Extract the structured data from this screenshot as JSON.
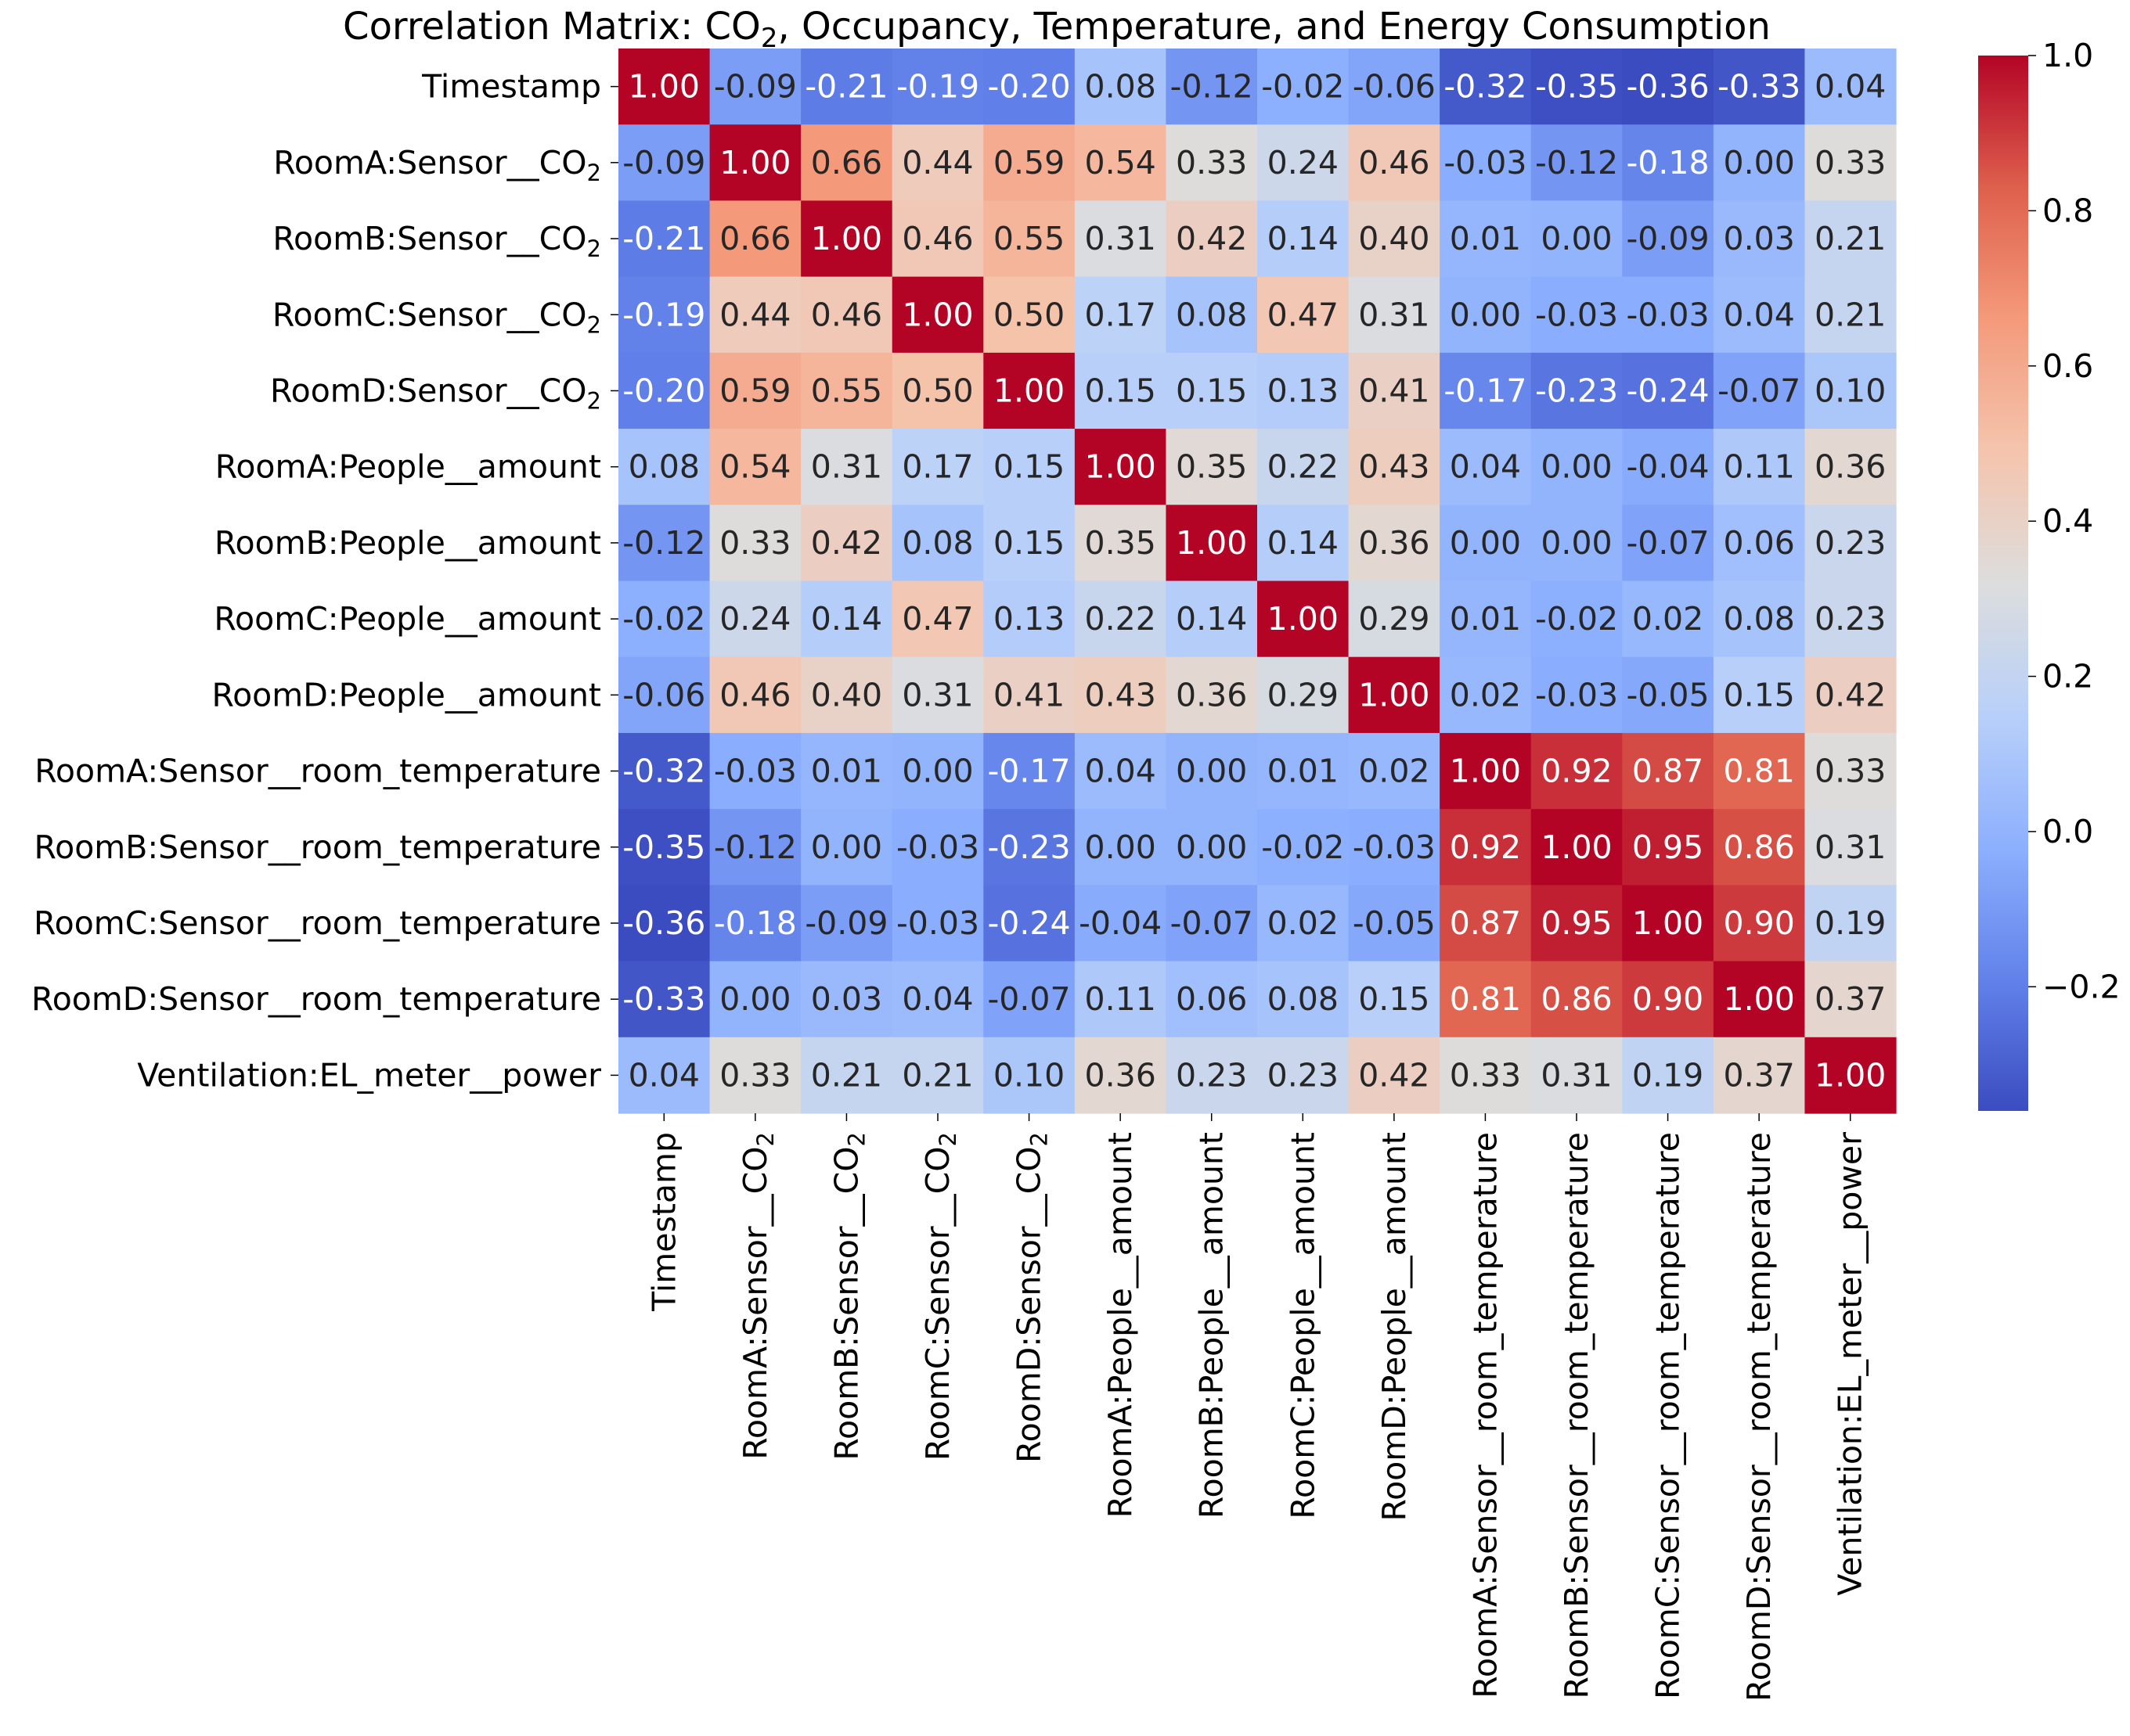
{
  "chart_data": {
    "type": "heatmap",
    "title_parts": [
      "Correlation Matrix: CO",
      "2",
      ", Occupancy, Temperature, and Energy Consumption"
    ],
    "colormap": "coolwarm",
    "vmin": -0.36,
    "vmax": 1.0,
    "labels": [
      {
        "text": "Timestamp"
      },
      {
        "text": "RoomA:Sensor__CO",
        "sub": "2"
      },
      {
        "text": "RoomB:Sensor__CO",
        "sub": "2"
      },
      {
        "text": "RoomC:Sensor__CO",
        "sub": "2"
      },
      {
        "text": "RoomD:Sensor__CO",
        "sub": "2"
      },
      {
        "text": "RoomA:People__amount"
      },
      {
        "text": "RoomB:People__amount"
      },
      {
        "text": "RoomC:People__amount"
      },
      {
        "text": "RoomD:People__amount"
      },
      {
        "text": "RoomA:Sensor__room_temperature"
      },
      {
        "text": "RoomB:Sensor__room_temperature"
      },
      {
        "text": "RoomC:Sensor__room_temperature"
      },
      {
        "text": "RoomD:Sensor__room_temperature"
      },
      {
        "text": "Ventilation:EL_meter__power"
      }
    ],
    "values": [
      [
        1.0,
        -0.09,
        -0.21,
        -0.19,
        -0.2,
        0.08,
        -0.12,
        -0.02,
        -0.06,
        -0.32,
        -0.35,
        -0.36,
        -0.33,
        0.04
      ],
      [
        -0.09,
        1.0,
        0.66,
        0.44,
        0.59,
        0.54,
        0.33,
        0.24,
        0.46,
        -0.03,
        -0.12,
        -0.18,
        -0.0,
        0.33
      ],
      [
        -0.21,
        0.66,
        1.0,
        0.46,
        0.55,
        0.31,
        0.42,
        0.14,
        0.4,
        0.01,
        0.0,
        -0.09,
        0.03,
        0.21
      ],
      [
        -0.19,
        0.44,
        0.46,
        1.0,
        0.5,
        0.17,
        0.08,
        0.47,
        0.31,
        0.0,
        -0.03,
        -0.03,
        0.04,
        0.21
      ],
      [
        -0.2,
        0.59,
        0.55,
        0.5,
        1.0,
        0.15,
        0.15,
        0.13,
        0.41,
        -0.17,
        -0.23,
        -0.24,
        -0.07,
        0.1
      ],
      [
        0.08,
        0.54,
        0.31,
        0.17,
        0.15,
        1.0,
        0.35,
        0.22,
        0.43,
        0.04,
        0.0,
        -0.04,
        0.11,
        0.36
      ],
      [
        -0.12,
        0.33,
        0.42,
        0.08,
        0.15,
        0.35,
        1.0,
        0.14,
        0.36,
        -0.0,
        0.0,
        -0.07,
        0.06,
        0.23
      ],
      [
        -0.02,
        0.24,
        0.14,
        0.47,
        0.13,
        0.22,
        0.14,
        1.0,
        0.29,
        0.01,
        -0.02,
        0.02,
        0.08,
        0.23
      ],
      [
        -0.06,
        0.46,
        0.4,
        0.31,
        0.41,
        0.43,
        0.36,
        0.29,
        1.0,
        0.02,
        -0.03,
        -0.05,
        0.15,
        0.42
      ],
      [
        -0.32,
        -0.03,
        0.01,
        0.0,
        -0.17,
        0.04,
        -0.0,
        0.01,
        0.02,
        1.0,
        0.92,
        0.87,
        0.81,
        0.33
      ],
      [
        -0.35,
        -0.12,
        0.0,
        -0.03,
        -0.23,
        0.0,
        0.0,
        -0.02,
        -0.03,
        0.92,
        1.0,
        0.95,
        0.86,
        0.31
      ],
      [
        -0.36,
        -0.18,
        -0.09,
        -0.03,
        -0.24,
        -0.04,
        -0.07,
        0.02,
        -0.05,
        0.87,
        0.95,
        1.0,
        0.9,
        0.19
      ],
      [
        -0.33,
        -0.0,
        0.03,
        0.04,
        -0.07,
        0.11,
        0.06,
        0.08,
        0.15,
        0.81,
        0.86,
        0.9,
        1.0,
        0.37
      ],
      [
        0.04,
        0.33,
        0.21,
        0.21,
        0.1,
        0.36,
        0.23,
        0.23,
        0.42,
        0.33,
        0.31,
        0.19,
        0.37,
        1.0
      ]
    ],
    "colorbar_ticks": [
      {
        "value": 1.0,
        "label": "1.0"
      },
      {
        "value": 0.8,
        "label": "0.8"
      },
      {
        "value": 0.6,
        "label": "0.6"
      },
      {
        "value": 0.4,
        "label": "0.4"
      },
      {
        "value": 0.2,
        "label": "0.2"
      },
      {
        "value": 0.0,
        "label": "0.0"
      },
      {
        "value": -0.2,
        "label": "−0.2"
      }
    ],
    "annotation_format": "2 decimals"
  }
}
